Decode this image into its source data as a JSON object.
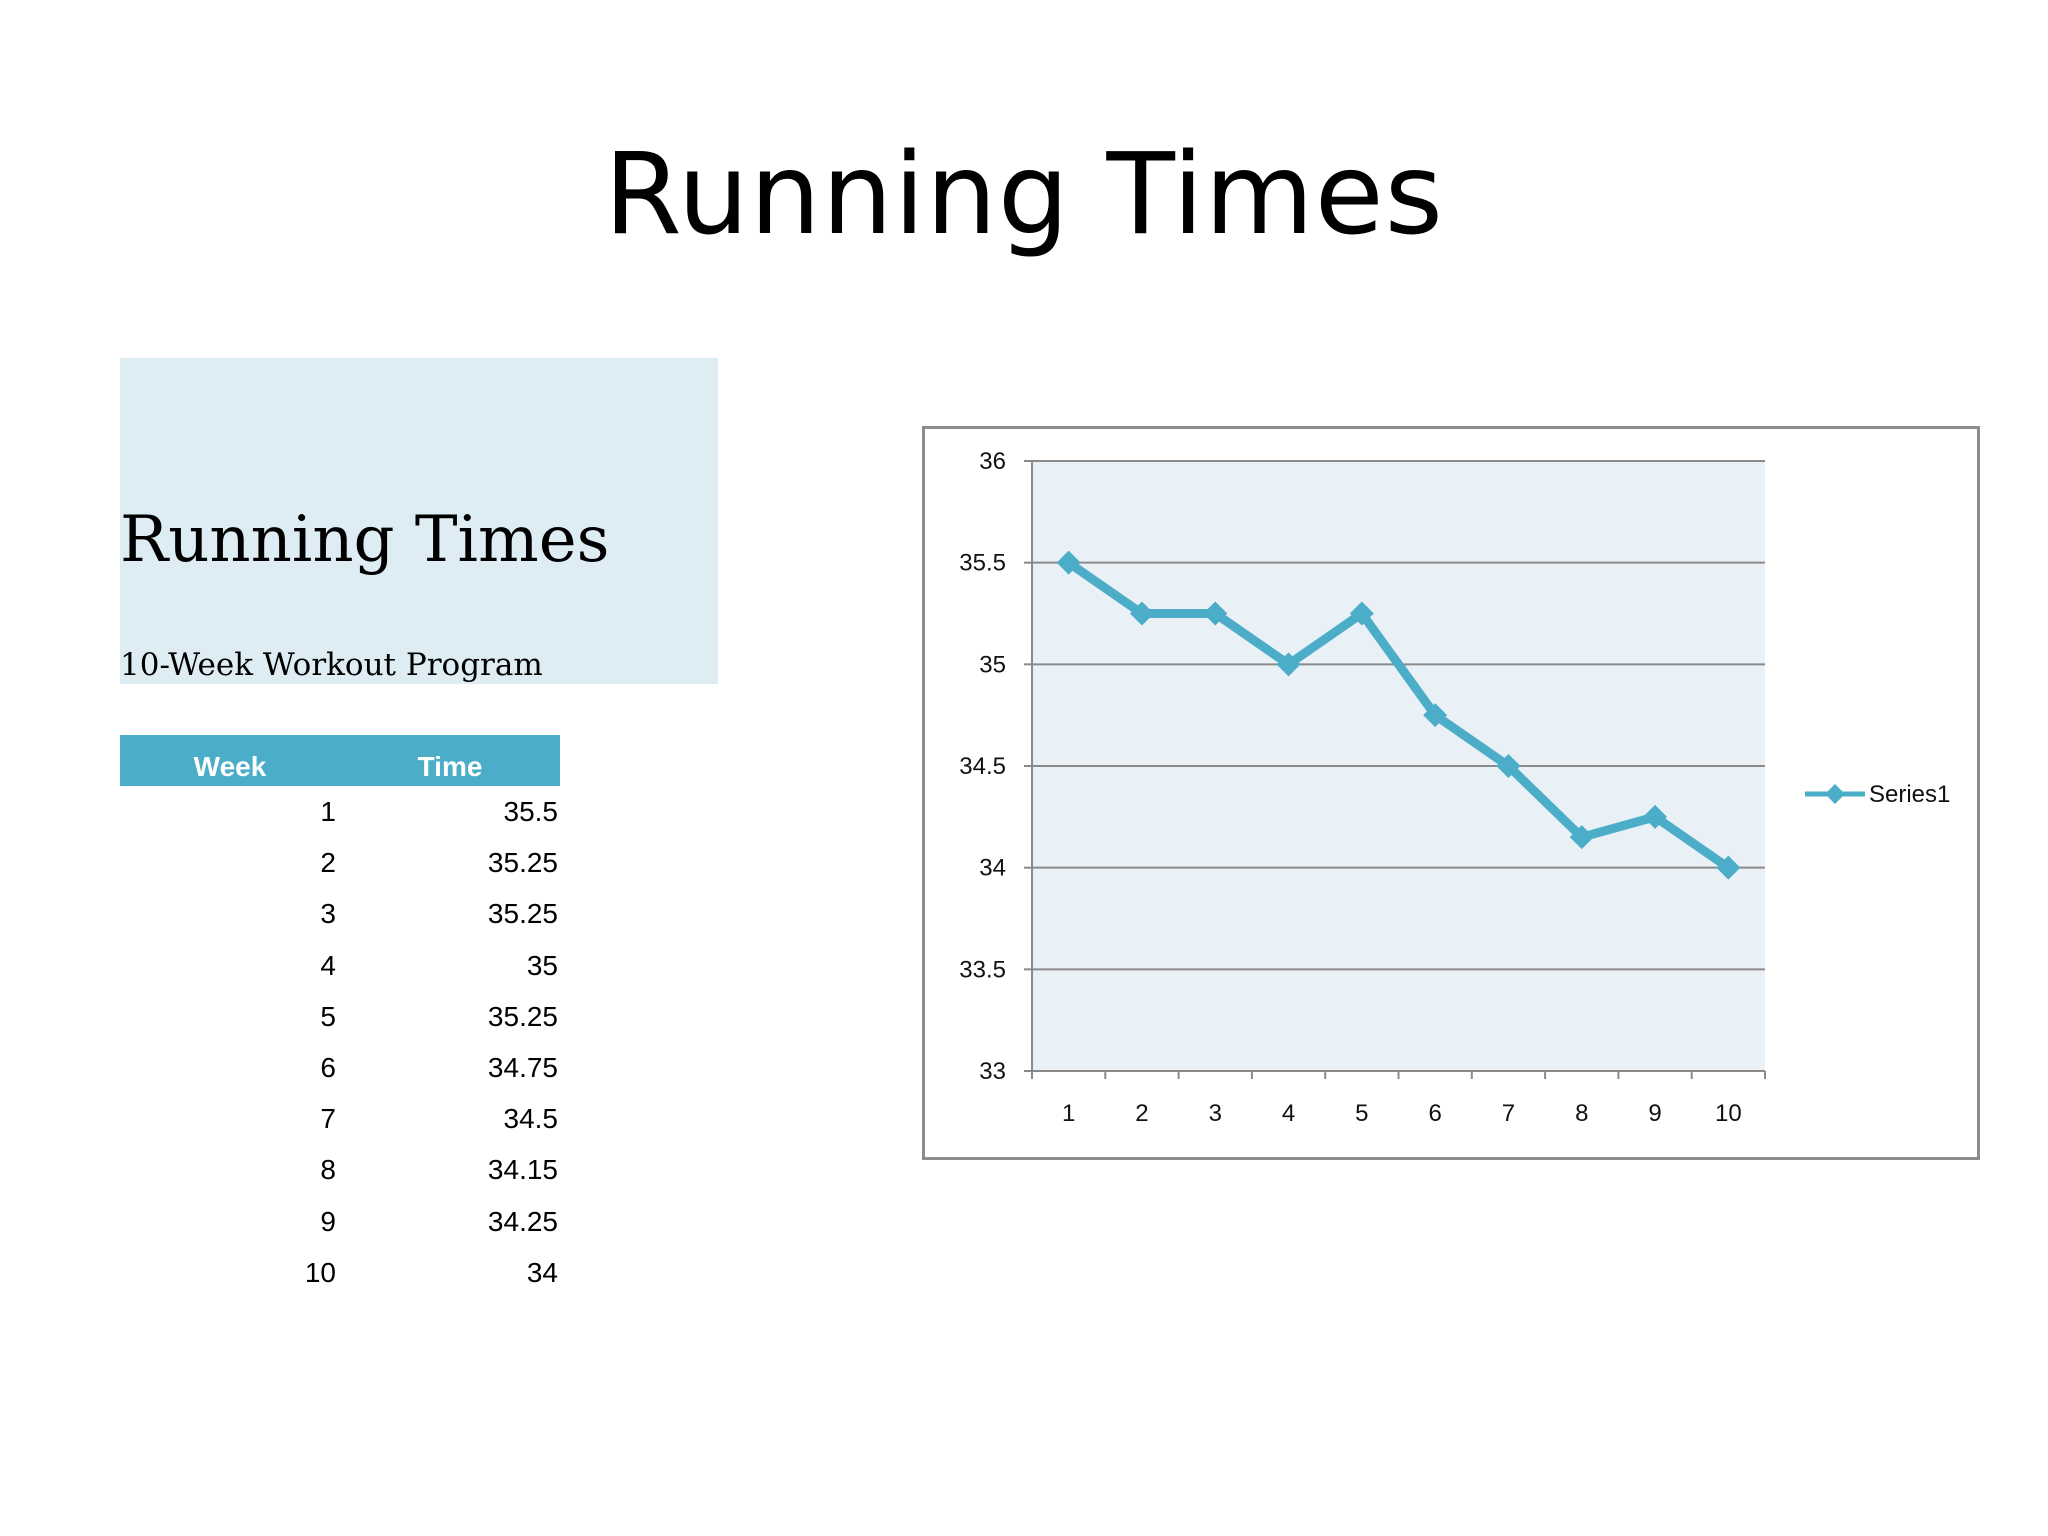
{
  "slide": {
    "title": "Running Times"
  },
  "panel": {
    "title": "Running Times",
    "subtitle": "10-Week Workout Program"
  },
  "table": {
    "headers": [
      "Week",
      "Time"
    ],
    "rows": [
      [
        "1",
        "35.5"
      ],
      [
        "2",
        "35.25"
      ],
      [
        "3",
        "35.25"
      ],
      [
        "4",
        "35"
      ],
      [
        "5",
        "35.25"
      ],
      [
        "6",
        "34.75"
      ],
      [
        "7",
        "34.5"
      ],
      [
        "8",
        "34.15"
      ],
      [
        "9",
        "34.25"
      ],
      [
        "10",
        "34"
      ]
    ]
  },
  "colors": {
    "accent": "#4badc8",
    "plot_bg": "#e9f1f7",
    "panel_bg": "#deedf4"
  },
  "chart_data": {
    "type": "line",
    "categories": [
      "1",
      "2",
      "3",
      "4",
      "5",
      "6",
      "7",
      "8",
      "9",
      "10"
    ],
    "series": [
      {
        "name": "Series1",
        "values": [
          35.5,
          35.25,
          35.25,
          35,
          35.25,
          34.75,
          34.5,
          34.15,
          34.25,
          34
        ],
        "color": "#4badc8",
        "marker": "diamond"
      }
    ],
    "ylim": [
      33,
      36
    ],
    "yticks": [
      "33",
      "33.5",
      "34",
      "34.5",
      "35",
      "35.5",
      "36"
    ],
    "grid": true,
    "legend": "right"
  }
}
